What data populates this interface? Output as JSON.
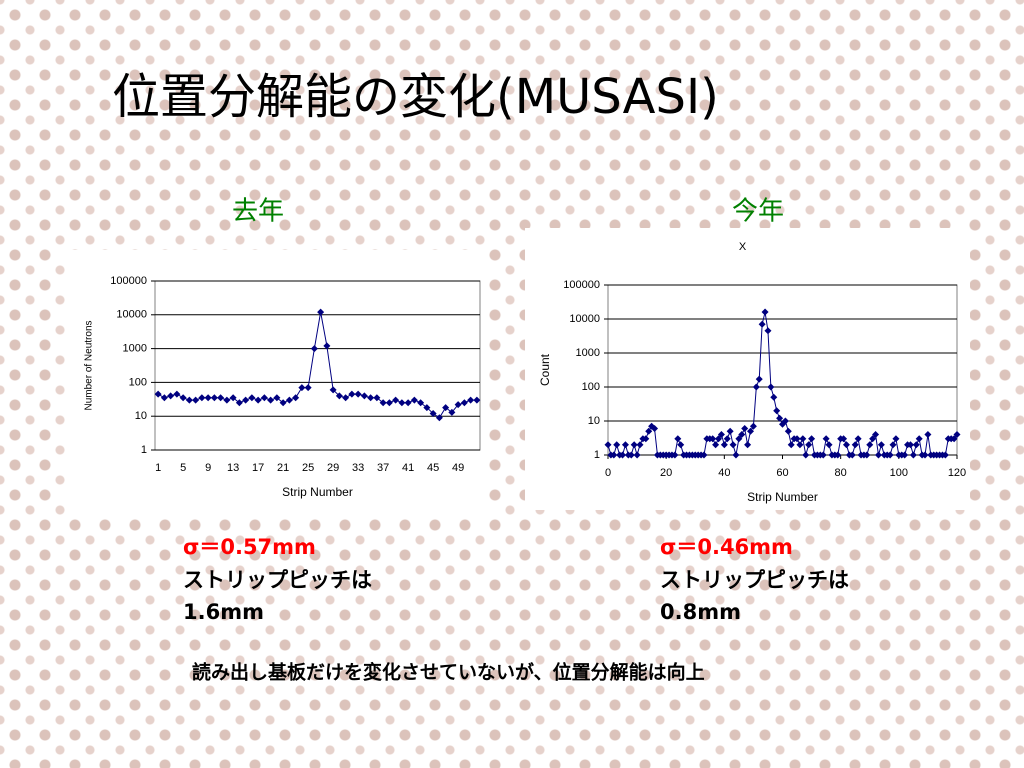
{
  "title": "位置分解能の変化(MUSASI)",
  "panels": [
    {
      "heading": "去年",
      "sigma": "σ＝0.57mm",
      "pitch_label": "ストリップピッチは",
      "pitch": "1.6mm"
    },
    {
      "heading": "今年",
      "sigma": "σ＝0.46mm",
      "pitch_label": "ストリップピッチは",
      "pitch": "0.8mm"
    }
  ],
  "note": "読み出し基板だけを変化させていないが、位置分解能は向上",
  "chart_data": [
    {
      "type": "line",
      "xlabel": "Strip Number",
      "ylabel": "Number of Neutrons",
      "color": "#000080",
      "log_y": true,
      "grid": true,
      "categories": [
        "1",
        null,
        null,
        null,
        "5",
        null,
        null,
        null,
        "9",
        null,
        null,
        null,
        "13",
        null,
        null,
        null,
        "17",
        null,
        null,
        null,
        "21",
        null,
        null,
        null,
        "25",
        null,
        null,
        null,
        "29",
        null,
        null,
        null,
        "33",
        null,
        null,
        null,
        "37",
        null,
        null,
        null,
        "41",
        null,
        null,
        null,
        "45",
        null,
        null,
        null,
        "49",
        null,
        null,
        null
      ],
      "values": [
        45,
        35,
        40,
        45,
        35,
        30,
        30,
        35,
        35,
        35,
        35,
        30,
        35,
        25,
        30,
        35,
        30,
        35,
        30,
        35,
        25,
        30,
        35,
        70,
        70,
        1000,
        12000,
        1200,
        60,
        40,
        35,
        45,
        45,
        40,
        35,
        35,
        25,
        25,
        30,
        25,
        25,
        30,
        25,
        18,
        12,
        9,
        18,
        13,
        22,
        25,
        30,
        30
      ],
      "ylim": [
        1,
        100000
      ],
      "yticks": [
        1,
        10,
        100,
        1000,
        10000,
        100000
      ]
    },
    {
      "type": "line",
      "title": "X",
      "xlabel": "Strip Number",
      "ylabel": "Count",
      "color": "#000080",
      "log_y": true,
      "grid": true,
      "x": [
        0,
        1,
        2,
        3,
        4,
        5,
        6,
        7,
        8,
        9,
        10,
        11,
        12,
        13,
        14,
        15,
        16,
        17,
        18,
        19,
        20,
        21,
        22,
        23,
        24,
        25,
        26,
        27,
        28,
        29,
        30,
        31,
        32,
        33,
        34,
        35,
        36,
        37,
        38,
        39,
        40,
        41,
        42,
        43,
        44,
        45,
        46,
        47,
        48,
        49,
        50,
        51,
        52,
        53,
        54,
        55,
        56,
        57,
        58,
        59,
        60,
        61,
        62,
        63,
        64,
        65,
        66,
        67,
        68,
        69,
        70,
        71,
        72,
        73,
        74,
        75,
        76,
        77,
        78,
        79,
        80,
        81,
        82,
        83,
        84,
        85,
        86,
        87,
        88,
        89,
        90,
        91,
        92,
        93,
        94,
        95,
        96,
        97,
        98,
        99,
        100,
        101,
        102,
        103,
        104,
        105,
        106,
        107,
        108,
        109,
        110,
        111,
        112,
        113,
        114,
        115,
        116,
        117,
        118,
        119,
        120
      ],
      "values": [
        2,
        1,
        1,
        2,
        1,
        1,
        2,
        1,
        1,
        2,
        1,
        2,
        3,
        3,
        5,
        7,
        6,
        1,
        1,
        1,
        1,
        1,
        1,
        1,
        3,
        2,
        1,
        1,
        1,
        1,
        1,
        1,
        1,
        1,
        3,
        3,
        3,
        2,
        3,
        4,
        2,
        3,
        5,
        2,
        1,
        3,
        4,
        6,
        2,
        5,
        7,
        100,
        170,
        7000,
        16000,
        4500,
        100,
        50,
        20,
        12,
        8,
        10,
        5,
        2,
        3,
        3,
        2,
        3,
        1,
        2,
        3,
        1,
        1,
        1,
        1,
        3,
        2,
        1,
        1,
        1,
        3,
        3,
        2,
        1,
        1,
        2,
        3,
        1,
        1,
        1,
        2,
        3,
        4,
        1,
        2,
        1,
        1,
        1,
        2,
        3,
        1,
        1,
        1,
        2,
        2,
        1,
        2,
        3,
        1,
        1,
        4,
        1,
        1,
        1,
        1,
        1,
        1,
        3,
        3,
        3,
        4
      ],
      "xlim": [
        0,
        120
      ],
      "xticks": [
        0,
        20,
        40,
        60,
        80,
        100,
        120
      ],
      "ylim": [
        1,
        100000
      ],
      "yticks": [
        1,
        10,
        100,
        1000,
        10000,
        100000
      ]
    }
  ]
}
